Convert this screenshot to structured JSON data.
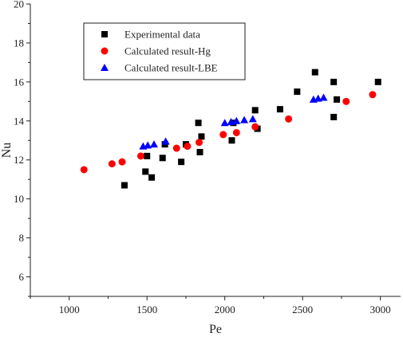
{
  "chart_data": {
    "type": "scatter",
    "title": "",
    "xlabel": "Pe",
    "ylabel": "Nu",
    "xlim": [
      750,
      3130
    ],
    "ylim": [
      5,
      20
    ],
    "xticks": [
      1000,
      1500,
      2000,
      2500,
      3000
    ],
    "yticks": [
      6,
      8,
      10,
      12,
      14,
      16,
      18,
      20
    ],
    "grid": false,
    "legend_position": "top-left",
    "series": [
      {
        "name": "Experimental data",
        "marker": "square",
        "color": "#000000",
        "x": [
          1355,
          1490,
          1500,
          1530,
          1600,
          1615,
          1720,
          1750,
          1830,
          1840,
          1850,
          2045,
          2055,
          2195,
          2210,
          2355,
          2465,
          2580,
          2700,
          2700,
          2720,
          2985
        ],
        "y": [
          10.7,
          11.4,
          12.2,
          11.1,
          12.1,
          12.8,
          11.9,
          12.8,
          13.9,
          12.4,
          13.2,
          13.0,
          13.9,
          14.55,
          13.6,
          14.6,
          15.5,
          16.5,
          16.0,
          14.2,
          15.1,
          16.0
        ]
      },
      {
        "name": "Calculated result-Hg",
        "marker": "circle",
        "color": "#ff0000",
        "x": [
          1095,
          1275,
          1340,
          1460,
          1690,
          1760,
          1835,
          1990,
          2075,
          2195,
          2410,
          2780,
          2950
        ],
        "y": [
          11.5,
          11.8,
          11.9,
          12.2,
          12.6,
          12.7,
          12.9,
          13.3,
          13.4,
          13.7,
          14.1,
          15.0,
          15.35
        ]
      },
      {
        "name": "Calculated result-LBE",
        "marker": "triangle",
        "color": "#0000ff",
        "x": [
          1475,
          1505,
          1545,
          1620,
          2000,
          2040,
          2075,
          2125,
          2180,
          2570,
          2600,
          2635
        ],
        "y": [
          12.7,
          12.75,
          12.8,
          12.95,
          13.9,
          13.95,
          14.0,
          14.05,
          14.1,
          15.1,
          15.15,
          15.2
        ]
      }
    ]
  }
}
